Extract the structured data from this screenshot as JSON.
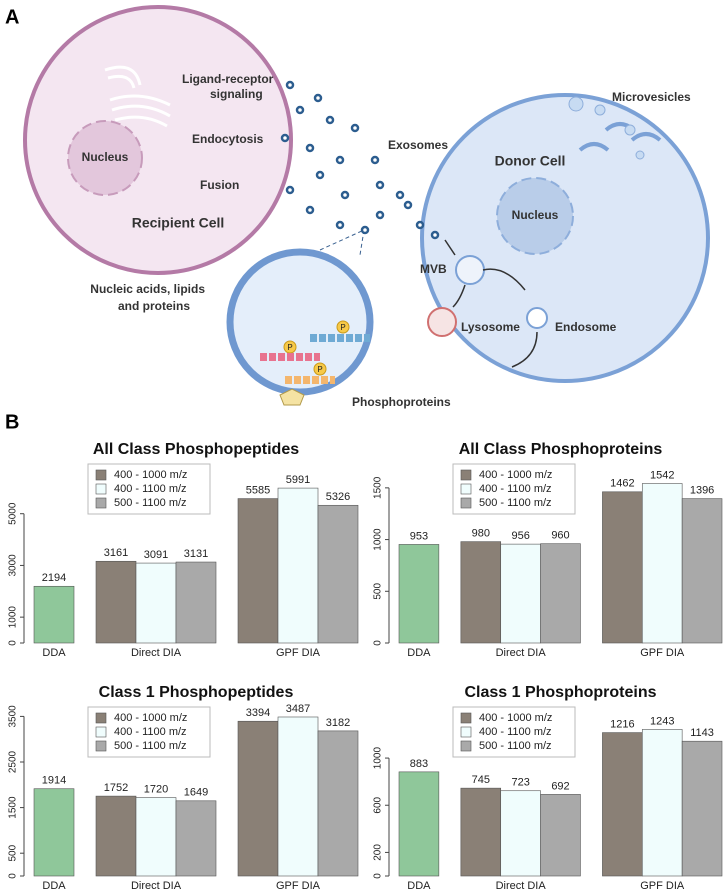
{
  "panel_labels": [
    "A",
    "B"
  ],
  "diagram": {
    "recipient_cell": "Recipient Cell",
    "recipient_nucleus": "Nucleus",
    "ligand_receptor": [
      "Ligand-receptor",
      "signaling"
    ],
    "endocytosis": "Endocytosis",
    "fusion": "Fusion",
    "exosomes": "Exosomes",
    "microvesicles": "Microvesicles",
    "donor_cell": "Donor Cell",
    "donor_nucleus": "Nucleus",
    "mvb": "MVB",
    "lysosome": "Lysosome",
    "endosome": "Endosome",
    "cargo": [
      "Nucleic acids, lipids",
      "and proteins"
    ],
    "phosphoproteins": "Phosphoproteins",
    "phospho_marker": "P"
  },
  "chart_data": [
    {
      "type": "bar",
      "title": "All Class Phosphopeptides",
      "categories": [
        "DDA",
        "Direct DIA",
        "GPF DIA"
      ],
      "series": [
        {
          "color": "#8fc79a",
          "values": [
            2194,
            null,
            null
          ]
        },
        {
          "name": "400 - 1000 m/z",
          "color": "#8a8076",
          "values": [
            null,
            3161,
            5585
          ]
        },
        {
          "name": "400 - 1100 m/z",
          "color": "#f0fdfd",
          "values": [
            null,
            3091,
            5991
          ]
        },
        {
          "name": "500 - 1100 m/z",
          "color": "#a9a9a9",
          "values": [
            null,
            3131,
            5326
          ]
        }
      ],
      "ylim": [
        0,
        7000
      ],
      "yticks": [
        0,
        1000,
        3000,
        5000
      ],
      "legend": "upper left"
    },
    {
      "type": "bar",
      "title": "All Class Phosphoproteins",
      "categories": [
        "DDA",
        "Direct DIA",
        "GPF DIA"
      ],
      "series": [
        {
          "color": "#8fc79a",
          "values": [
            953,
            null,
            null
          ]
        },
        {
          "name": "400 - 1000 m/z",
          "color": "#8a8076",
          "values": [
            null,
            980,
            1462
          ]
        },
        {
          "name": "400 - 1100 m/z",
          "color": "#f0fdfd",
          "values": [
            null,
            956,
            1542
          ]
        },
        {
          "name": "500 - 1100 m/z",
          "color": "#a9a9a9",
          "values": [
            null,
            960,
            1396
          ]
        }
      ],
      "ylim": [
        0,
        1750
      ],
      "yticks": [
        0,
        500,
        1000,
        1500
      ],
      "legend": "upper left"
    },
    {
      "type": "bar",
      "title": "Class 1 Phosphopeptides",
      "categories": [
        "DDA",
        "Direct DIA",
        "GPF DIA"
      ],
      "series": [
        {
          "color": "#8fc79a",
          "values": [
            1914,
            null,
            null
          ]
        },
        {
          "name": "400 - 1000 m/z",
          "color": "#8a8076",
          "values": [
            null,
            1752,
            3394
          ]
        },
        {
          "name": "400 - 1100 m/z",
          "color": "#f0fdfd",
          "values": [
            null,
            1720,
            3487
          ]
        },
        {
          "name": "500 - 1100 m/z",
          "color": "#a9a9a9",
          "values": [
            null,
            1649,
            3182
          ]
        }
      ],
      "ylim": [
        0,
        3750
      ],
      "yticks": [
        0,
        500,
        1500,
        2500,
        3500
      ],
      "legend": "upper left"
    },
    {
      "type": "bar",
      "title": "Class 1 Phosphoproteins",
      "categories": [
        "DDA",
        "Direct DIA",
        "GPF DIA"
      ],
      "series": [
        {
          "color": "#8fc79a",
          "values": [
            883,
            null,
            null
          ]
        },
        {
          "name": "400 - 1000 m/z",
          "color": "#8a8076",
          "values": [
            null,
            745,
            1216
          ]
        },
        {
          "name": "400 - 1100 m/z",
          "color": "#f0fdfd",
          "values": [
            null,
            723,
            1243
          ]
        },
        {
          "name": "500 - 1100 m/z",
          "color": "#a9a9a9",
          "values": [
            null,
            692,
            1143
          ]
        }
      ],
      "ylim": [
        0,
        1450
      ],
      "yticks": [
        0,
        200,
        600,
        1000
      ],
      "legend": "upper left"
    }
  ]
}
